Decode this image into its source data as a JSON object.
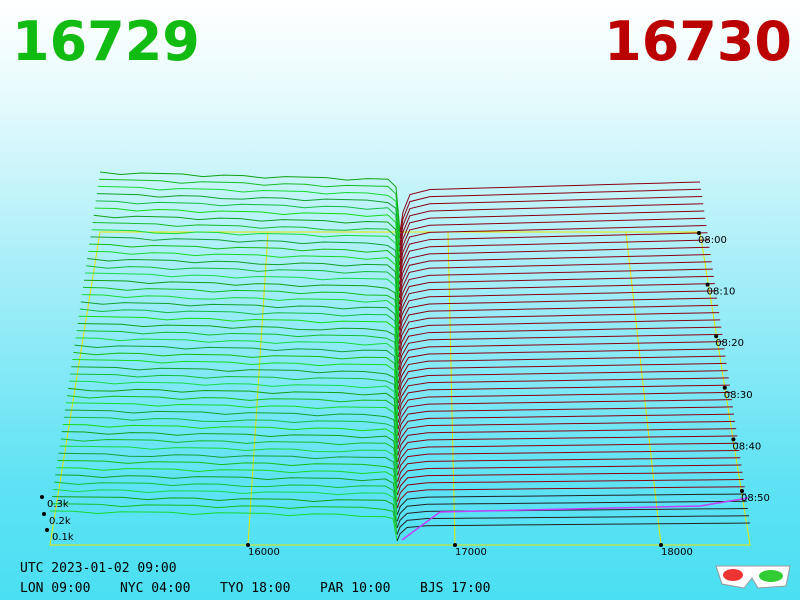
{
  "header": {
    "bid": "16729",
    "ask": "16730"
  },
  "price_axis": {
    "ticks": [
      "16000",
      "17000",
      "18000"
    ]
  },
  "depth_axis": {
    "ticks": [
      "0.3k",
      "0.2k",
      "0.1k"
    ]
  },
  "time_axis": {
    "ticks": [
      "08:00",
      "08:10",
      "08:20",
      "08:30",
      "08:40",
      "08:50"
    ]
  },
  "footer": {
    "utc": "UTC 2023-01-02 09:00",
    "clocks": [
      "LON 09:00",
      "NYC 04:00",
      "TYO 18:00",
      "PAR 10:00",
      "BJS 17:00"
    ]
  }
}
